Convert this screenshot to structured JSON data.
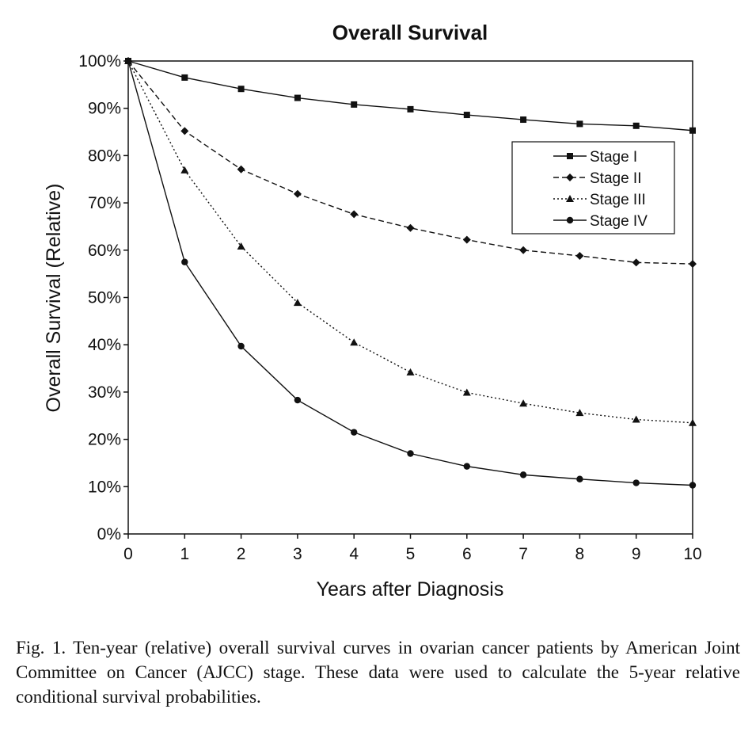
{
  "chart_data": {
    "type": "line",
    "title": "Overall Survival",
    "xlabel": "Years after Diagnosis",
    "ylabel": "Overall Survival (Relative)",
    "x": [
      0,
      1,
      2,
      3,
      4,
      5,
      6,
      7,
      8,
      9,
      10
    ],
    "xlim": [
      0,
      10
    ],
    "ylim": [
      0,
      100
    ],
    "y_ticks": [
      "0%",
      "10%",
      "20%",
      "30%",
      "40%",
      "50%",
      "60%",
      "70%",
      "80%",
      "90%",
      "100%"
    ],
    "x_ticks": [
      "0",
      "1",
      "2",
      "3",
      "4",
      "5",
      "6",
      "7",
      "8",
      "9",
      "10"
    ],
    "grid": false,
    "legend_position": "top-right",
    "series": [
      {
        "name": "Stage I",
        "marker": "square",
        "line_style": "solid",
        "values": [
          100,
          96.5,
          94.1,
          92.2,
          90.8,
          89.8,
          88.6,
          87.6,
          86.7,
          86.3,
          85.3
        ]
      },
      {
        "name": "Stage II",
        "marker": "diamond",
        "line_style": "dashed",
        "values": [
          100,
          85.2,
          77.1,
          71.9,
          67.6,
          64.7,
          62.2,
          60.0,
          58.8,
          57.4,
          57.1
        ]
      },
      {
        "name": "Stage III",
        "marker": "triangle",
        "line_style": "dotted",
        "values": [
          100,
          76.9,
          60.8,
          48.9,
          40.5,
          34.2,
          29.9,
          27.6,
          25.6,
          24.2,
          23.5
        ]
      },
      {
        "name": "Stage IV",
        "marker": "circle",
        "line_style": "solid",
        "values": [
          100,
          57.5,
          39.7,
          28.3,
          21.5,
          17.0,
          14.3,
          12.5,
          11.6,
          10.8,
          10.3
        ]
      }
    ]
  },
  "caption": "Fig. 1. Ten-year (relative) overall survival curves in ovarian cancer patients by American Joint Committee on Cancer (AJCC) stage. These data were used to calculate the 5-year relative conditional survival probabilities."
}
